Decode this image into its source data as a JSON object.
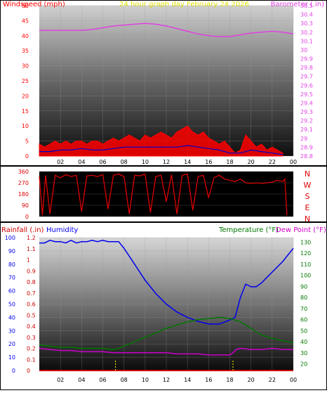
{
  "colors": {
    "windspeed": "#ff0000",
    "windavg": "#0000cc",
    "windlow": "#008800",
    "barometer": "#e040e0",
    "direction": "#dd0000",
    "rainfall": "#cc0000",
    "humidity": "#0000ee",
    "temperature": "#007700",
    "dewpoint": "#cc00cc",
    "title": "#e0e000",
    "marker": "#ffff00"
  },
  "chart_data": [
    {
      "type": "line",
      "title": "24 hour graph day   February 24 2026",
      "left_label": "Windspeed (mph)",
      "right_label": "Barometer (.in)",
      "x_tick_labels": [
        "02",
        "04",
        "06",
        "08",
        "10",
        "12",
        "14",
        "16",
        "18",
        "20",
        "22",
        "00"
      ],
      "x_range": [
        0,
        24
      ],
      "left_ticks": [
        "0",
        "5",
        "10",
        "15",
        "20",
        "25",
        "30",
        "35",
        "40",
        "45",
        "50"
      ],
      "right_ticks": [
        "28.8",
        "28.9",
        "29",
        "29.1",
        "29.2",
        "29.3",
        "29.4",
        "29.5",
        "29.6",
        "29.7",
        "29.8",
        "29.9",
        "30",
        "30.1",
        "30.2",
        "30.3",
        "30.4",
        "30.5"
      ],
      "ylim_left": [
        0,
        50
      ],
      "ylim_right": [
        28.8,
        30.5
      ],
      "series": [
        {
          "name": "Windspeed (mph)",
          "axis": "left",
          "x": [
            0,
            0.5,
            1,
            1.5,
            2,
            2.5,
            3,
            3.5,
            4,
            4.5,
            5,
            5.5,
            6,
            6.5,
            7,
            7.5,
            8,
            8.5,
            9,
            9.5,
            10,
            10.5,
            11,
            11.5,
            12,
            12.5,
            13,
            13.5,
            14,
            14.5,
            15,
            15.5,
            16,
            16.5,
            17,
            17.5,
            18,
            18.5,
            19,
            19.5,
            20,
            20.5,
            21,
            21.5,
            22,
            22.5,
            23
          ],
          "y": [
            4,
            3,
            4,
            5,
            4,
            5,
            4,
            5,
            5,
            4,
            5,
            5,
            4,
            5,
            6,
            5,
            6,
            7,
            6,
            5,
            7,
            6,
            7,
            8,
            7,
            6,
            8,
            9,
            10,
            8,
            7,
            8,
            6,
            5,
            4,
            5,
            3,
            1,
            2,
            7,
            5,
            3,
            4,
            2,
            3,
            2,
            1
          ]
        },
        {
          "name": "Average wind",
          "axis": "left",
          "x": [
            0,
            1,
            2,
            3,
            4,
            5,
            6,
            7,
            8,
            9,
            10,
            11,
            12,
            13,
            14,
            15,
            16,
            17,
            18,
            19,
            20,
            21,
            22,
            23
          ],
          "y": [
            1.5,
            1.5,
            2,
            2,
            2.5,
            2,
            2,
            2.5,
            3,
            3,
            3,
            3,
            3,
            3,
            3.5,
            3,
            2.5,
            2,
            1,
            1,
            2,
            1.5,
            1,
            0.5
          ]
        },
        {
          "name": "Barometer (.in)",
          "axis": "right",
          "x": [
            0,
            1,
            2,
            3,
            4,
            5,
            6,
            7,
            8,
            9,
            10,
            11,
            12,
            13,
            14,
            15,
            16,
            17,
            18,
            19,
            20,
            21,
            22,
            23,
            24
          ],
          "y": [
            30.22,
            30.22,
            30.22,
            30.22,
            30.22,
            30.23,
            30.25,
            30.27,
            30.28,
            30.29,
            30.3,
            30.29,
            30.27,
            30.24,
            30.21,
            30.18,
            30.16,
            30.15,
            30.15,
            30.17,
            30.19,
            30.2,
            30.21,
            30.2,
            30.18
          ]
        }
      ]
    },
    {
      "type": "line",
      "left_ticks": [
        "0",
        "90",
        "180",
        "270",
        "360"
      ],
      "ylim": [
        0,
        360
      ],
      "right_labels": [
        "N",
        "W",
        "S",
        "E",
        "N"
      ],
      "series": [
        {
          "name": "Wind direction",
          "x": [
            0,
            0.3,
            0.6,
            1,
            1.5,
            2,
            2.5,
            3,
            3.5,
            4,
            4.5,
            5,
            5.5,
            6,
            6.5,
            7,
            7.5,
            8,
            8.5,
            9,
            9.5,
            10,
            10.5,
            11,
            11.5,
            12,
            12.5,
            13,
            13.5,
            14,
            14.5,
            15,
            15.5,
            16,
            16.5,
            17,
            17.5,
            18,
            18.5,
            19,
            19.5,
            20,
            20.5,
            21,
            21.5,
            22,
            22.5,
            23,
            23.2,
            23.4
          ],
          "y": [
            320,
            10,
            330,
            20,
            330,
            310,
            335,
            320,
            330,
            40,
            325,
            330,
            320,
            335,
            60,
            330,
            340,
            320,
            20,
            330,
            325,
            340,
            30,
            320,
            330,
            120,
            335,
            20,
            330,
            340,
            50,
            320,
            330,
            150,
            310,
            330,
            300,
            290,
            280,
            300,
            270,
            265,
            270,
            265,
            270,
            275,
            290,
            280,
            300,
            10
          ]
        }
      ]
    },
    {
      "type": "line",
      "left_label": "Rainfall (.in)",
      "humidity_label": "Humidity",
      "right_label": "Temperature (°F)",
      "right_label2": "Dew Point (°F)",
      "x_tick_labels": [
        "02",
        "04",
        "06",
        "08",
        "10",
        "12",
        "14",
        "16",
        "18",
        "20",
        "22",
        "00"
      ],
      "x_range": [
        0,
        24
      ],
      "humidity_ticks": [
        "0",
        "10",
        "20",
        "30",
        "40",
        "50",
        "60",
        "70",
        "80",
        "90",
        "100"
      ],
      "rain_ticks": [
        "0",
        "0.1",
        "0.2",
        "0.3",
        "0.4",
        "0.5",
        "0.6",
        "0.7",
        "0.8",
        "0.9",
        "1",
        "1.1",
        "1.2"
      ],
      "temp_ticks": [
        "20",
        "30",
        "40",
        "50",
        "60",
        "70",
        "80",
        "90",
        "100",
        "110",
        "120",
        "130"
      ],
      "ylim_humidity": [
        0,
        100
      ],
      "ylim_rain": [
        0,
        1.2
      ],
      "ylim_temp": [
        14,
        134
      ],
      "series": [
        {
          "name": "Humidity",
          "axis": "humidity",
          "x": [
            0,
            0.5,
            1,
            1.5,
            2,
            2.5,
            3,
            3.5,
            4,
            4.5,
            5,
            5.5,
            6,
            6.5,
            7,
            7.5,
            8,
            9,
            10,
            11,
            12,
            13,
            14,
            15,
            16,
            17,
            18,
            18.5,
            19,
            19.5,
            20,
            20.5,
            21,
            22,
            23,
            24
          ],
          "y": [
            96,
            96,
            98,
            97,
            97,
            96,
            98,
            96,
            97,
            97,
            98,
            97,
            98,
            97,
            97,
            97,
            92,
            80,
            68,
            58,
            50,
            44,
            40,
            37,
            35,
            35,
            38,
            40,
            55,
            65,
            63,
            63,
            66,
            74,
            82,
            92
          ]
        },
        {
          "name": "Temperature (°F)",
          "axis": "temp",
          "x": [
            0,
            1,
            2,
            3,
            4,
            5,
            6,
            7,
            7.5,
            8,
            9,
            10,
            11,
            12,
            13,
            14,
            15,
            16,
            17,
            18,
            19,
            20,
            21,
            22,
            23,
            24
          ],
          "y": [
            37,
            36,
            35,
            35,
            34,
            34,
            34,
            33,
            34,
            36,
            40,
            44,
            48,
            52,
            55,
            58,
            60,
            61,
            62,
            61,
            58,
            52,
            46,
            43,
            41,
            39
          ]
        },
        {
          "name": "Dew Point (°F)",
          "axis": "temp",
          "x": [
            0,
            1,
            2,
            3,
            4,
            5,
            6,
            7,
            8,
            9,
            10,
            11,
            12,
            13,
            14,
            15,
            16,
            17,
            18,
            18.3,
            18.6,
            19,
            20,
            21,
            22,
            23,
            24
          ],
          "y": [
            34,
            33,
            32,
            32,
            31,
            31,
            31,
            30,
            30,
            30,
            30,
            30,
            30,
            29,
            29,
            29,
            28,
            28,
            28,
            30,
            33,
            34,
            33,
            33,
            34,
            33,
            33
          ]
        },
        {
          "name": "Rainfall (.in)",
          "axis": "rain",
          "x": [
            0,
            24
          ],
          "y": [
            0,
            0
          ]
        }
      ]
    }
  ]
}
